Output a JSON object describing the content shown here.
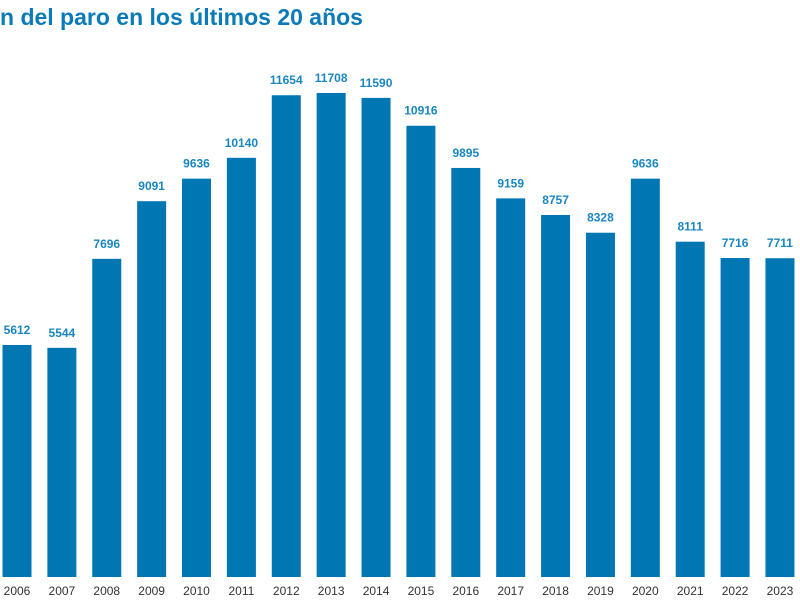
{
  "chart_data": {
    "type": "bar",
    "title": "n del paro en los últimos 20 años",
    "categories": [
      "2006",
      "2007",
      "2008",
      "2009",
      "2010",
      "2011",
      "2012",
      "2013",
      "2014",
      "2015",
      "2016",
      "2017",
      "2018",
      "2019",
      "2020",
      "2021",
      "2022",
      "2023"
    ],
    "values": [
      5612,
      5544,
      7696,
      9091,
      9636,
      10140,
      11654,
      11708,
      11590,
      10916,
      9895,
      9159,
      8757,
      8328,
      9636,
      8111,
      7716,
      7711
    ],
    "xlabel": "",
    "ylabel": "",
    "grid": false,
    "data_labels": true,
    "colors": {
      "bar": "#0077b3",
      "title": "#0a7bb8",
      "label": "#1a86c0"
    }
  }
}
